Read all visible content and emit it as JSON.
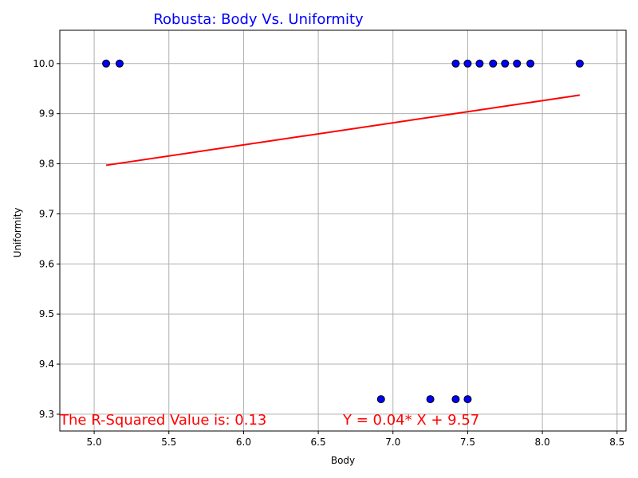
{
  "chart_data": {
    "type": "scatter",
    "title": "Robusta: Body Vs. Uniformity",
    "xlabel": "Body",
    "ylabel": "Uniformity",
    "xlim": [
      4.77,
      8.56
    ],
    "ylim": [
      9.2665,
      10.0665
    ],
    "xticks": [
      5.0,
      5.5,
      6.0,
      6.5,
      7.0,
      7.5,
      8.0,
      8.5
    ],
    "yticks": [
      9.3,
      9.4,
      9.5,
      9.6,
      9.7,
      9.8,
      9.9,
      10.0
    ],
    "grid": true,
    "colors": {
      "title": "#0000ff",
      "points": "#0000ff",
      "point_edge": "#000000",
      "regression": "#ff0000",
      "annotation": "#ff0000",
      "grid": "#b0b0b0"
    },
    "points": [
      {
        "x": 5.08,
        "y": 10.0
      },
      {
        "x": 5.17,
        "y": 10.0
      },
      {
        "x": 7.42,
        "y": 10.0
      },
      {
        "x": 7.5,
        "y": 10.0
      },
      {
        "x": 7.58,
        "y": 10.0
      },
      {
        "x": 7.67,
        "y": 10.0
      },
      {
        "x": 7.75,
        "y": 10.0
      },
      {
        "x": 7.83,
        "y": 10.0
      },
      {
        "x": 7.92,
        "y": 10.0
      },
      {
        "x": 8.25,
        "y": 10.0
      },
      {
        "x": 6.92,
        "y": 9.33
      },
      {
        "x": 7.25,
        "y": 9.33
      },
      {
        "x": 7.42,
        "y": 9.33
      },
      {
        "x": 7.5,
        "y": 9.33
      }
    ],
    "regression": {
      "x": [
        5.08,
        8.25
      ],
      "y": [
        9.797,
        9.937
      ]
    },
    "annotations": {
      "r_squared": "The R-Squared Value is: 0.13",
      "equation": "Y = 0.04* X + 9.57"
    }
  }
}
